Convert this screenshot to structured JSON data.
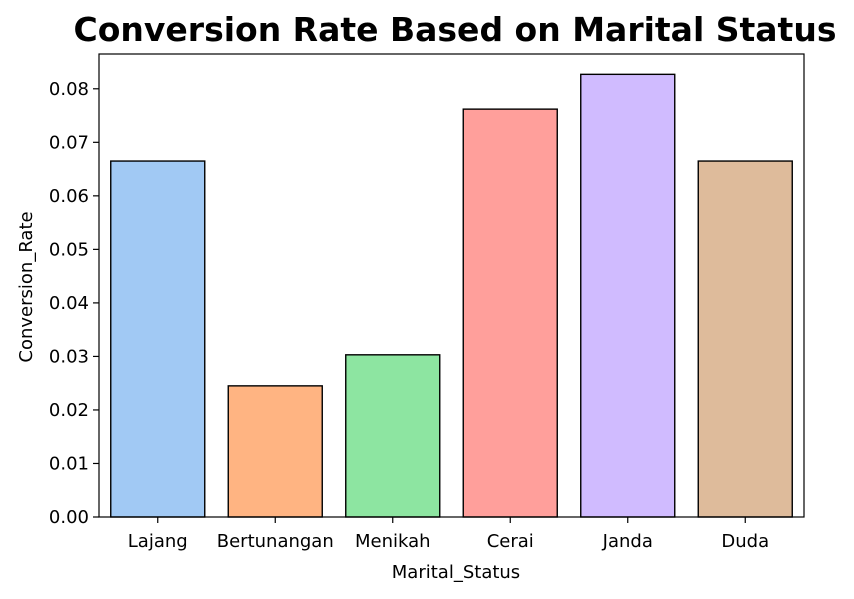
{
  "chart_data": {
    "type": "bar",
    "title": "Conversion Rate Based on Marital Status",
    "xlabel": "Marital_Status",
    "ylabel": "Conversion_Rate",
    "categories": [
      "Lajang",
      "Bertunangan",
      "Menikah",
      "Cerai",
      "Janda",
      "Duda"
    ],
    "values": [
      0.0665,
      0.0245,
      0.0303,
      0.0762,
      0.0827,
      0.0665
    ],
    "colors": [
      "#a1c9f4",
      "#ffb482",
      "#8de5a1",
      "#ff9f9b",
      "#d0bbff",
      "#debb9b"
    ],
    "ylim": [
      0,
      0.0865
    ],
    "yticks": [
      "0.00",
      "0.01",
      "0.02",
      "0.03",
      "0.04",
      "0.05",
      "0.06",
      "0.07",
      "0.08"
    ],
    "ytick_values": [
      0,
      0.01,
      0.02,
      0.03,
      0.04,
      0.05,
      0.06,
      0.07,
      0.08
    ],
    "grid": false,
    "legend": "none"
  }
}
